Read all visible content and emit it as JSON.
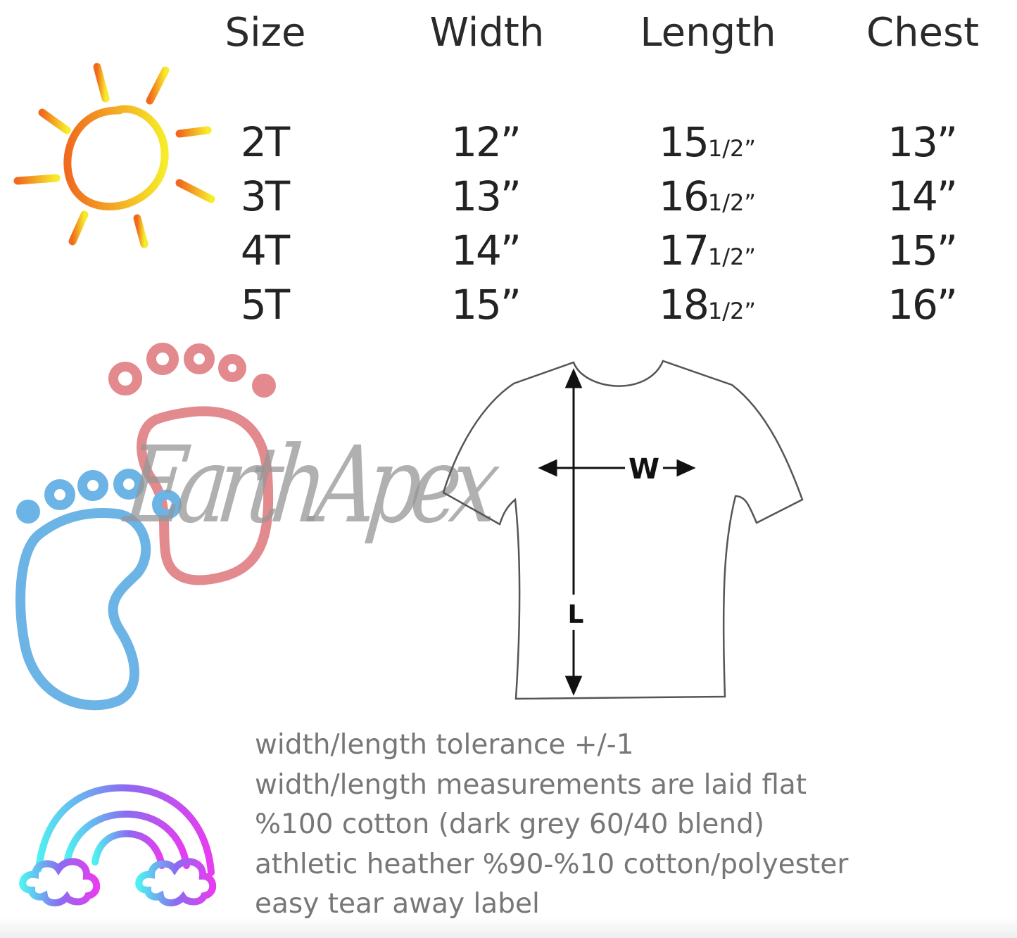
{
  "table": {
    "headers": [
      "Size",
      "Width",
      "Length",
      "Chest"
    ],
    "rows": [
      {
        "size": "2T",
        "width": "12”",
        "length_whole": "15",
        "length_fraction": "1/2”",
        "chest": "13”"
      },
      {
        "size": "3T",
        "width": "13”",
        "length_whole": "16",
        "length_fraction": "1/2”",
        "chest": "14”"
      },
      {
        "size": "4T",
        "width": "14”",
        "length_whole": "17",
        "length_fraction": "1/2”",
        "chest": "15”"
      },
      {
        "size": "5T",
        "width": "15”",
        "length_whole": "18",
        "length_fraction": "1/2”",
        "chest": "16”"
      }
    ]
  },
  "diagram": {
    "width_label": "W",
    "length_label": "L"
  },
  "watermark": "EarthApex",
  "notes": [
    "width/length tolerance +/-1",
    "width/length measurements are laid flat",
    "%100 cotton (dark grey 60/40 blend)",
    "athletic heather %90-%10 cotton/polyester",
    "easy tear away label"
  ],
  "icons": [
    "sun-icon",
    "baby-feet-icon",
    "rainbow-icon",
    "tshirt-diagram"
  ],
  "colors": {
    "pink_foot": "#e38a8f",
    "blue_foot": "#6cb3e6",
    "sun_orange": "#f07a1e",
    "sun_yellow": "#f5e62a"
  }
}
